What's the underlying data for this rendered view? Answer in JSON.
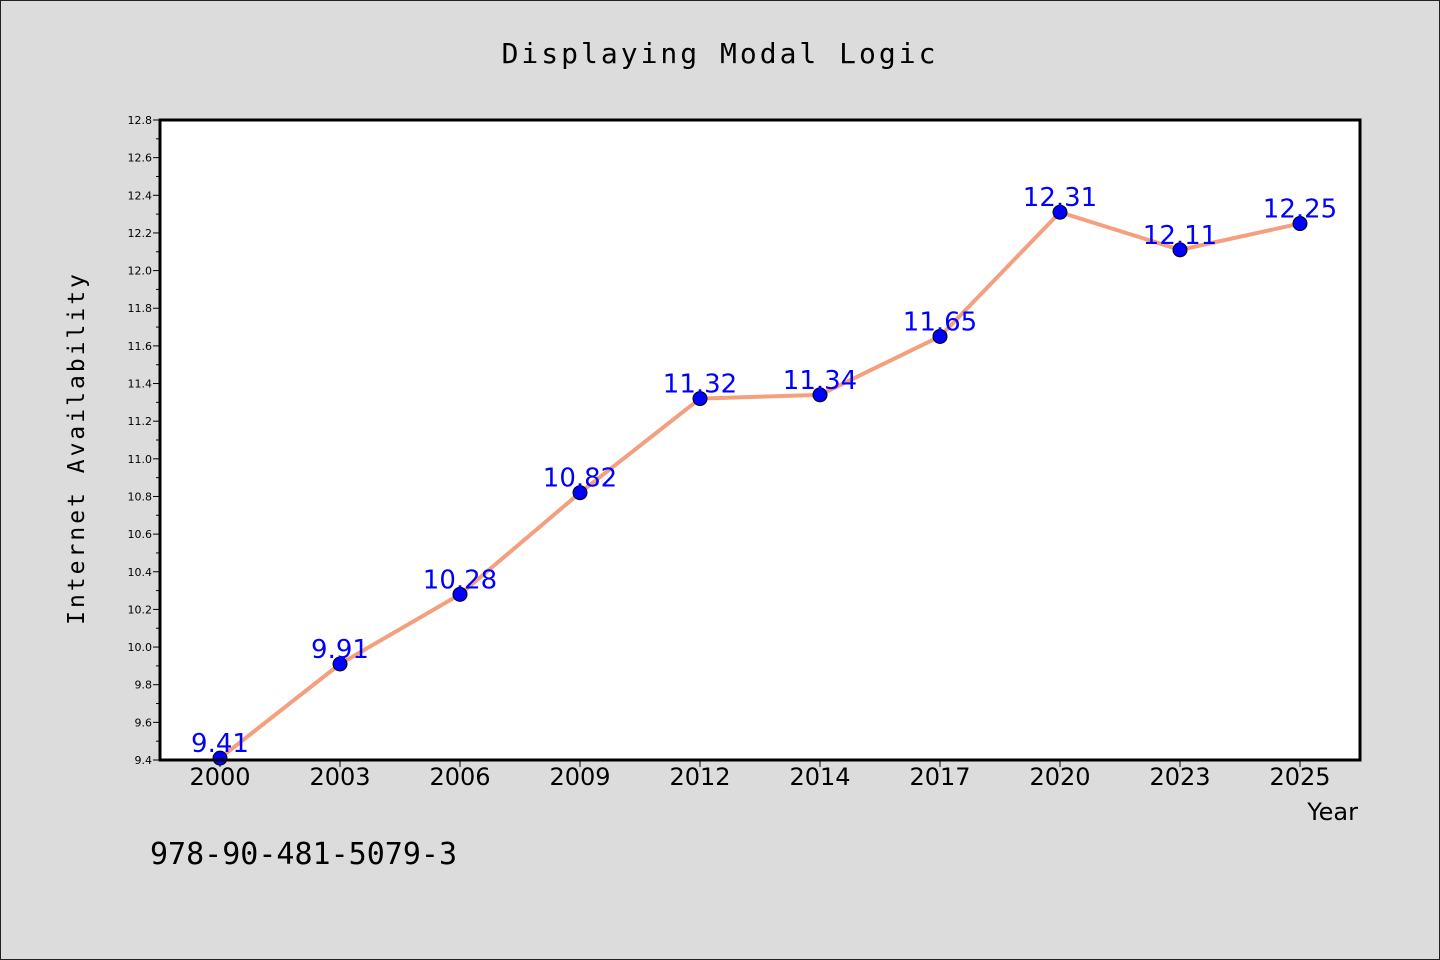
{
  "chart_data": {
    "type": "line",
    "title": "Displaying Modal Logic",
    "xlabel": "Year",
    "ylabel": "Internet Availability",
    "categories": [
      "2000",
      "2003",
      "2006",
      "2009",
      "2012",
      "2014",
      "2017",
      "2020",
      "2023",
      "2025"
    ],
    "values": [
      9.41,
      9.91,
      10.28,
      10.82,
      11.32,
      11.34,
      11.65,
      12.31,
      12.11,
      12.25
    ],
    "data_labels": [
      "9.41",
      "9.91",
      "10.28",
      "10.82",
      "11.32",
      "11.34",
      "11.65",
      "12.31",
      "12.11",
      "12.25"
    ],
    "ylim": [
      9.4,
      12.8
    ],
    "yticks": [
      "9.4",
      "9.6",
      "9.8",
      "10.0",
      "10.2",
      "10.4",
      "10.6",
      "10.8",
      "11.0",
      "11.2",
      "11.4",
      "11.6",
      "11.8",
      "12.0",
      "12.2",
      "12.4",
      "12.6",
      "12.8"
    ],
    "grid": false,
    "line_color": "#f4a07f",
    "marker_color": "#0000ff",
    "label_color": "#0000ff"
  },
  "footnote": "978-90-481-5079-3"
}
